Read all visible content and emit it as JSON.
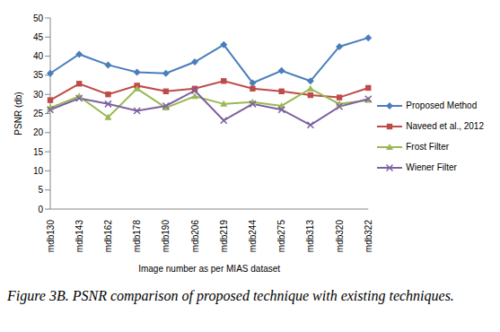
{
  "chart_data": {
    "type": "line",
    "title": "Figure 3B. PSNR comparison of proposed technique with existing techniques.",
    "x_label": "Image number as per MIAS dataset",
    "y_label": "PSNR (db)",
    "categories": [
      "mdb130",
      "mdb143",
      "mdb162",
      "mdb178",
      "mdb190",
      "mdb206",
      "mdb219",
      "mdb244",
      "mdb275",
      "mdb313",
      "mdb320",
      "mdb322"
    ],
    "series": [
      {
        "name": "Proposed Method",
        "color": "#4a7ebb",
        "marker": "diamond",
        "values": [
          35.5,
          40.5,
          37.7,
          35.8,
          35.5,
          38.5,
          43,
          33,
          36.2,
          33.5,
          42.5,
          44.8
        ]
      },
      {
        "name": "Naveed et al., 2012",
        "color": "#be4b48",
        "marker": "square",
        "values": [
          28.5,
          32.8,
          30,
          32.3,
          30.8,
          31.5,
          33.5,
          31.5,
          30.8,
          29.8,
          29.2,
          31.7
        ]
      },
      {
        "name": "Frost Filter",
        "color": "#98b954",
        "marker": "triangle",
        "values": [
          26.5,
          29.5,
          24,
          31.5,
          26.5,
          29.5,
          27.5,
          28,
          27,
          31.5,
          27.5,
          28.5
        ]
      },
      {
        "name": "Wiener Filter",
        "color": "#7d60a0",
        "marker": "x",
        "values": [
          26,
          29,
          27.5,
          25.7,
          27,
          31,
          23.2,
          27.5,
          26,
          22,
          26.8,
          28.8
        ]
      }
    ],
    "ylim": [
      0,
      50
    ],
    "yticks": [
      0,
      5,
      10,
      15,
      20,
      25,
      30,
      35,
      40,
      45,
      50
    ],
    "grid": false,
    "legend": "right"
  }
}
